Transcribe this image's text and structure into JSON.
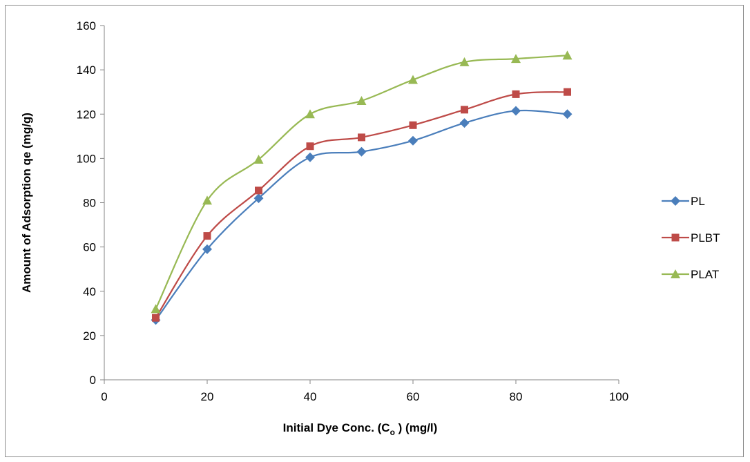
{
  "chart_data": {
    "type": "line",
    "title": "",
    "xlabel": "Initial Dye Conc. (C",
    "xlabel_sub": "o",
    "xlabel_tail": " ) (mg/l)",
    "ylabel": "Amount of Adsorption qe (mg/g)",
    "xlim": [
      0,
      100
    ],
    "ylim": [
      0,
      160
    ],
    "x_ticks": [
      0,
      20,
      40,
      60,
      80,
      100
    ],
    "y_ticks": [
      0,
      20,
      40,
      60,
      80,
      100,
      120,
      140,
      160
    ],
    "grid": false,
    "smooth": true,
    "legend_position": "right",
    "x": [
      10,
      20,
      30,
      40,
      50,
      60,
      70,
      80,
      90
    ],
    "series": [
      {
        "name": "PL",
        "color": "#4a7ebb",
        "marker": "diamond",
        "values": [
          27,
          59,
          82,
          100.5,
          103,
          108,
          116,
          121.5,
          120
        ]
      },
      {
        "name": "PLBT",
        "color": "#be4b48",
        "marker": "square",
        "values": [
          28,
          65,
          85.5,
          105.5,
          109.5,
          115,
          122,
          129,
          130
        ]
      },
      {
        "name": "PLAT",
        "color": "#98b954",
        "marker": "triangle",
        "values": [
          32,
          81,
          99.5,
          120,
          126,
          135.5,
          143.5,
          145,
          146.5
        ]
      }
    ]
  }
}
